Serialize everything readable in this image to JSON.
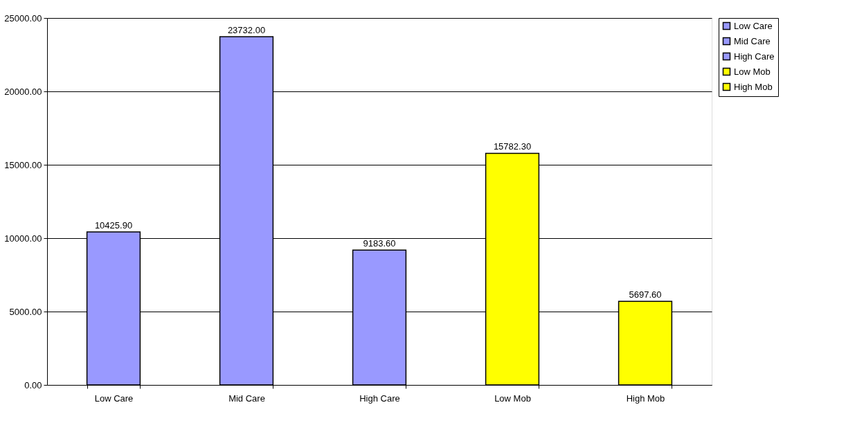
{
  "chart_data": {
    "type": "bar",
    "categories": [
      "Low Care",
      "Mid Care",
      "High Care",
      "Low Mob",
      "High Mob"
    ],
    "series": [
      {
        "name": "Low Care",
        "color": "#9999ff",
        "values": [
          10425.9,
          null,
          null,
          null,
          null
        ],
        "value_labels": [
          "10425.90",
          null,
          null,
          null,
          null
        ]
      },
      {
        "name": "Mid Care",
        "color": "#9999ff",
        "values": [
          null,
          23732.0,
          null,
          null,
          null
        ],
        "value_labels": [
          null,
          "23732.00",
          null,
          null,
          null
        ]
      },
      {
        "name": "High Care",
        "color": "#9999ff",
        "values": [
          null,
          null,
          9183.6,
          null,
          null
        ],
        "value_labels": [
          null,
          null,
          "9183.60",
          null,
          null
        ]
      },
      {
        "name": "Low Mob",
        "color": "#ffff00",
        "values": [
          null,
          null,
          null,
          15782.3,
          null
        ],
        "value_labels": [
          null,
          null,
          null,
          "15782.30",
          null
        ]
      },
      {
        "name": "High Mob",
        "color": "#ffff00",
        "values": [
          null,
          null,
          null,
          null,
          5697.6
        ],
        "value_labels": [
          null,
          null,
          null,
          null,
          "5697.60"
        ]
      }
    ],
    "ylim": [
      0,
      25000
    ],
    "yticks": [
      {
        "value": 0,
        "label": "0.00"
      },
      {
        "value": 5000,
        "label": "5000.00"
      },
      {
        "value": 10000,
        "label": "10000.00"
      },
      {
        "value": 15000,
        "label": "15000.00"
      },
      {
        "value": 20000,
        "label": "20000.00"
      },
      {
        "value": 25000,
        "label": "25000.00"
      }
    ],
    "grid": "y",
    "legend": "right"
  }
}
